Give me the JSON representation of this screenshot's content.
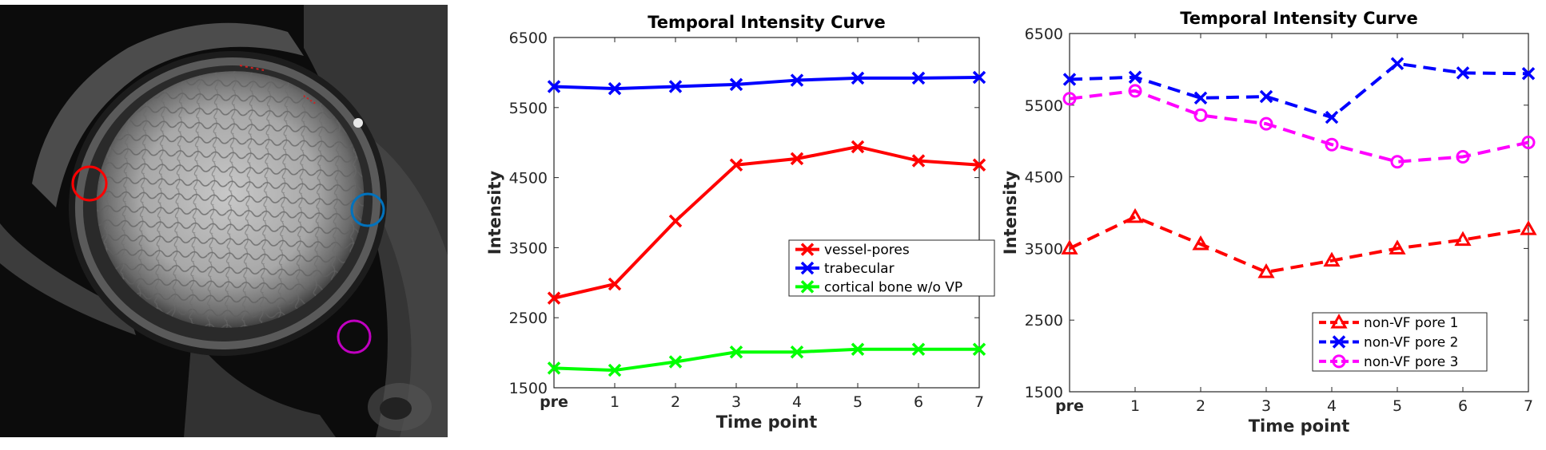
{
  "image_panel": {
    "name": "MRI cross-section of vertebra with marked regions",
    "markers": [
      {
        "name": "red-roi",
        "color": "#ff0000"
      },
      {
        "name": "blue-roi",
        "color": "#0072bd"
      },
      {
        "name": "magenta-roi",
        "color": "#c000c0"
      }
    ]
  },
  "chart_data": [
    {
      "type": "line",
      "title": "Temporal Intensity Curve",
      "xlabel": "Time point",
      "ylabel": "Intensity",
      "categories": [
        "pre",
        "1",
        "2",
        "3",
        "4",
        "5",
        "6",
        "7"
      ],
      "ylim": [
        1500,
        6500
      ],
      "yticks": [
        1500,
        2500,
        3500,
        4500,
        5500,
        6500
      ],
      "legend_position": "center-right",
      "series": [
        {
          "name": "vessel-pores",
          "color": "#ff0000",
          "marker": "x",
          "dash": "solid",
          "values": [
            2780,
            2980,
            3880,
            4680,
            4770,
            4940,
            4740,
            4680
          ]
        },
        {
          "name": "trabecular",
          "color": "#0000ff",
          "marker": "x",
          "dash": "solid",
          "values": [
            5800,
            5770,
            5800,
            5830,
            5890,
            5920,
            5920,
            5930
          ]
        },
        {
          "name": "cortical bone w/o VP",
          "color": "#00ff00",
          "marker": "x",
          "dash": "solid",
          "values": [
            1780,
            1750,
            1870,
            2010,
            2010,
            2050,
            2050,
            2050
          ]
        }
      ]
    },
    {
      "type": "line",
      "title": "Temporal Intensity Curve",
      "xlabel": "Time point",
      "ylabel": "Intensity",
      "categories": [
        "pre",
        "1",
        "2",
        "3",
        "4",
        "5",
        "6",
        "7"
      ],
      "ylim": [
        1500,
        6500
      ],
      "yticks": [
        1500,
        2500,
        3500,
        4500,
        5500,
        6500
      ],
      "legend_position": "bottom-right",
      "series": [
        {
          "name": "non-VF pore 1",
          "color": "#ff0000",
          "marker": "triangle",
          "dash": "dashed",
          "values": [
            3500,
            3940,
            3560,
            3170,
            3330,
            3500,
            3620,
            3770
          ]
        },
        {
          "name": "non-VF pore 2",
          "color": "#0000ff",
          "marker": "x",
          "dash": "dashed",
          "values": [
            5860,
            5890,
            5600,
            5620,
            5330,
            6080,
            5950,
            5940
          ]
        },
        {
          "name": "non-VF pore 3",
          "color": "#ff00ff",
          "marker": "circle",
          "dash": "dashed",
          "values": [
            5590,
            5700,
            5360,
            5240,
            4950,
            4710,
            4780,
            4980
          ]
        }
      ]
    }
  ]
}
